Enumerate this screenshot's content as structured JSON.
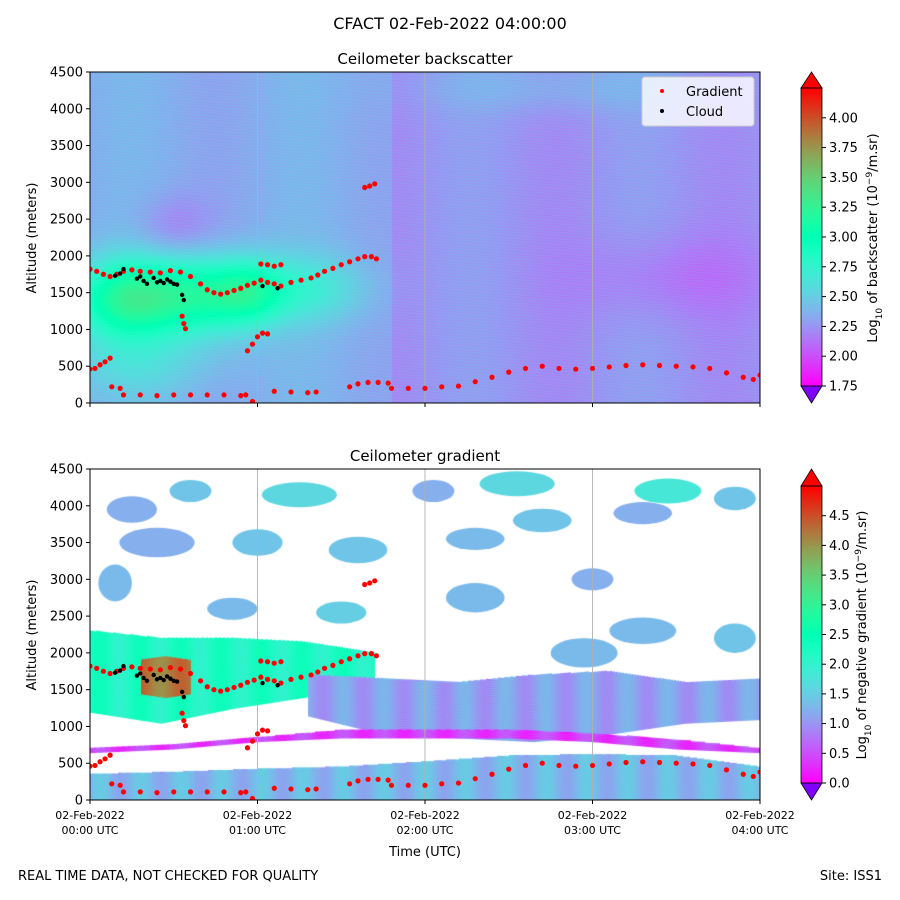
{
  "figure": {
    "suptitle": "CFACT 02-Feb-2022 04:00:00",
    "footer_left": "REAL TIME DATA, NOT CHECKED FOR QUALITY",
    "footer_right": "Site: ISS1"
  },
  "chart_data": [
    {
      "type": "heatmap",
      "title": "Ceilometer backscatter",
      "xlabel": "",
      "ylabel": "Altitude (meters)",
      "xlim_hours_utc": [
        0,
        4
      ],
      "ylim": [
        0,
        4500
      ],
      "yticks": [
        0,
        500,
        1000,
        1500,
        2000,
        2500,
        3000,
        3500,
        4000,
        4500
      ],
      "grid": "vertical lines at each hour",
      "colorbar": {
        "label_prefix": "Log",
        "label_sub": "10",
        "label_mid": " of backscatter (10",
        "label_sup": "−9",
        "label_suffix": "/m.sr)",
        "range": [
          1.75,
          4.25
        ],
        "ticks": [
          "1.75",
          "2.00",
          "2.25",
          "2.50",
          "2.75",
          "3.00",
          "3.25",
          "3.50",
          "3.75",
          "4.00"
        ],
        "tick_values": [
          1.75,
          2.0,
          2.25,
          2.5,
          2.75,
          3.0,
          3.25,
          3.5,
          3.75,
          4.0
        ],
        "colormap": "rainbow",
        "extend": "both"
      },
      "legend": {
        "placement": "top-right",
        "entries": [
          {
            "label": "Gradient",
            "color": "#ff0000"
          },
          {
            "label": "Cloud",
            "color": "#000000"
          }
        ]
      },
      "background_level": 2.35,
      "field_blobs": [
        {
          "t": 0.2,
          "z": 1400,
          "st": 0.22,
          "sz": 380,
          "amp": 0.75
        },
        {
          "t": 0.65,
          "z": 1450,
          "st": 0.25,
          "sz": 380,
          "amp": 0.7
        },
        {
          "t": 0.95,
          "z": 1500,
          "st": 0.15,
          "sz": 300,
          "amp": 0.45
        },
        {
          "t": 1.3,
          "z": 1550,
          "st": 0.25,
          "sz": 320,
          "amp": 0.3
        },
        {
          "t": 0.3,
          "z": 500,
          "st": 0.35,
          "sz": 320,
          "amp": 0.18
        },
        {
          "t": 0.5,
          "z": 2400,
          "st": 0.15,
          "sz": 300,
          "amp": -0.15
        },
        {
          "t": 2.8,
          "z": 4300,
          "st": 0.6,
          "sz": 250,
          "amp": 0.12
        },
        {
          "t": 3.5,
          "z": 1700,
          "st": 0.4,
          "sz": 400,
          "amp": -0.12
        }
      ],
      "gradient_points": [
        [
          0.0,
          1820
        ],
        [
          0.04,
          1790
        ],
        [
          0.08,
          1750
        ],
        [
          0.12,
          1720
        ],
        [
          0.16,
          1750
        ],
        [
          0.2,
          1790
        ],
        [
          0.25,
          1810
        ],
        [
          0.3,
          1790
        ],
        [
          0.36,
          1780
        ],
        [
          0.42,
          1770
        ],
        [
          0.48,
          1800
        ],
        [
          0.54,
          1780
        ],
        [
          0.6,
          1720
        ],
        [
          0.66,
          1620
        ],
        [
          0.7,
          1540
        ],
        [
          0.74,
          1500
        ],
        [
          0.78,
          1480
        ],
        [
          0.82,
          1500
        ],
        [
          0.86,
          1530
        ],
        [
          0.9,
          1560
        ],
        [
          0.94,
          1600
        ],
        [
          0.98,
          1630
        ],
        [
          1.02,
          1670
        ],
        [
          1.06,
          1640
        ],
        [
          1.1,
          1620
        ],
        [
          1.14,
          1590
        ],
        [
          1.2,
          1640
        ],
        [
          1.26,
          1670
        ],
        [
          1.32,
          1700
        ],
        [
          1.36,
          1740
        ],
        [
          1.4,
          1790
        ],
        [
          1.45,
          1830
        ],
        [
          1.5,
          1880
        ],
        [
          1.55,
          1920
        ],
        [
          1.6,
          1960
        ],
        [
          1.64,
          1990
        ],
        [
          1.68,
          1990
        ],
        [
          1.71,
          1960
        ],
        [
          1.02,
          1890
        ],
        [
          1.06,
          1880
        ],
        [
          1.1,
          1860
        ],
        [
          1.14,
          1880
        ],
        [
          0.94,
          710
        ],
        [
          0.97,
          800
        ],
        [
          1.0,
          900
        ],
        [
          1.03,
          950
        ],
        [
          1.06,
          940
        ],
        [
          1.64,
          2930
        ],
        [
          1.67,
          2950
        ],
        [
          1.7,
          2980
        ],
        [
          0.0,
          460
        ],
        [
          0.03,
          470
        ],
        [
          0.06,
          520
        ],
        [
          0.09,
          560
        ],
        [
          0.12,
          610
        ],
        [
          0.13,
          220
        ],
        [
          0.18,
          200
        ],
        [
          0.2,
          110
        ],
        [
          0.3,
          110
        ],
        [
          0.4,
          100
        ],
        [
          0.5,
          110
        ],
        [
          0.6,
          110
        ],
        [
          0.7,
          110
        ],
        [
          0.8,
          110
        ],
        [
          0.9,
          100
        ],
        [
          0.93,
          110
        ],
        [
          0.97,
          20
        ],
        [
          1.1,
          160
        ],
        [
          1.2,
          150
        ],
        [
          1.3,
          140
        ],
        [
          1.35,
          150
        ],
        [
          1.55,
          220
        ],
        [
          1.6,
          260
        ],
        [
          1.66,
          280
        ],
        [
          1.72,
          280
        ],
        [
          1.78,
          270
        ],
        [
          1.8,
          200
        ],
        [
          1.9,
          200
        ],
        [
          2.0,
          200
        ],
        [
          2.1,
          220
        ],
        [
          2.2,
          230
        ],
        [
          2.3,
          290
        ],
        [
          2.4,
          350
        ],
        [
          2.5,
          420
        ],
        [
          2.6,
          470
        ],
        [
          2.7,
          500
        ],
        [
          2.8,
          470
        ],
        [
          2.9,
          460
        ],
        [
          3.0,
          470
        ],
        [
          3.1,
          490
        ],
        [
          3.2,
          510
        ],
        [
          3.3,
          520
        ],
        [
          3.4,
          510
        ],
        [
          3.5,
          500
        ],
        [
          3.6,
          490
        ],
        [
          3.7,
          470
        ],
        [
          3.8,
          410
        ],
        [
          3.9,
          350
        ],
        [
          3.96,
          320
        ],
        [
          4.0,
          380
        ],
        [
          0.55,
          1180
        ],
        [
          0.56,
          1080
        ],
        [
          0.57,
          1010
        ]
      ],
      "cloud_points": [
        [
          0.15,
          1730
        ],
        [
          0.18,
          1760
        ],
        [
          0.2,
          1820
        ],
        [
          0.28,
          1690
        ],
        [
          0.3,
          1720
        ],
        [
          0.32,
          1660
        ],
        [
          0.34,
          1620
        ],
        [
          0.38,
          1700
        ],
        [
          0.4,
          1640
        ],
        [
          0.42,
          1660
        ],
        [
          0.44,
          1630
        ],
        [
          0.46,
          1680
        ],
        [
          0.48,
          1650
        ],
        [
          0.5,
          1620
        ],
        [
          0.52,
          1610
        ],
        [
          0.55,
          1470
        ],
        [
          0.56,
          1400
        ],
        [
          1.03,
          1590
        ],
        [
          1.12,
          1560
        ]
      ]
    },
    {
      "type": "heatmap",
      "title": "Ceilometer gradient",
      "xlabel": "Time (UTC)",
      "ylabel": "Altitude (meters)",
      "xlim_hours_utc": [
        0,
        4
      ],
      "ylim": [
        0,
        4500
      ],
      "yticks": [
        0,
        500,
        1000,
        1500,
        2000,
        2500,
        3000,
        3500,
        4000,
        4500
      ],
      "xticks": [
        {
          "value": 0,
          "line1": "02-Feb-2022",
          "line2": "00:00 UTC"
        },
        {
          "value": 1,
          "line1": "02-Feb-2022",
          "line2": "01:00 UTC"
        },
        {
          "value": 2,
          "line1": "02-Feb-2022",
          "line2": "02:00 UTC"
        },
        {
          "value": 3,
          "line1": "02-Feb-2022",
          "line2": "03:00 UTC"
        },
        {
          "value": 4,
          "line1": "02-Feb-2022",
          "line2": "04:00 UTC"
        }
      ],
      "grid": "vertical lines at each hour",
      "colorbar": {
        "label_prefix": "Log",
        "label_sub": "10",
        "label_mid": " of negative gradient (10",
        "label_sup": "−9",
        "label_suffix": "/m.sr)",
        "range": [
          0.0,
          5.0
        ],
        "ticks": [
          "0.0",
          "0.5",
          "1.0",
          "1.5",
          "2.0",
          "2.5",
          "3.0",
          "3.5",
          "4.0",
          "4.5"
        ],
        "tick_values": [
          0.0,
          0.5,
          1.0,
          1.5,
          2.0,
          2.5,
          3.0,
          3.5,
          4.0,
          4.5
        ],
        "colormap": "rainbow",
        "extend": "both"
      },
      "bands": [
        {
          "t0": 0.0,
          "t1": 1.7,
          "zlo": [
            1200,
            1050,
            1250,
            1400,
            1550
          ],
          "zhi": [
            2300,
            2200,
            2200,
            2150,
            2000
          ],
          "value": 2.2
        },
        {
          "t0": 0.3,
          "t1": 0.6,
          "zlo": [
            1450,
            1400,
            1450
          ],
          "zhi": [
            1900,
            1950,
            1900
          ],
          "value": 4.2
        },
        {
          "t0": 1.3,
          "t1": 4.0,
          "zlo": [
            1150,
            900,
            850,
            800,
            900,
            1050,
            1100
          ],
          "zhi": [
            1700,
            1650,
            1600,
            1700,
            1750,
            1600,
            1650
          ],
          "value": 1.1
        },
        {
          "t0": 0.0,
          "t1": 4.0,
          "zlo": [
            0,
            0,
            0,
            0,
            0,
            0,
            0,
            0,
            0
          ],
          "zhi": [
            350,
            380,
            420,
            450,
            520,
            600,
            620,
            600,
            450
          ],
          "value": 1.3
        },
        {
          "t0": 0.0,
          "t1": 4.0,
          "zlo": [
            650,
            700,
            800,
            850,
            850,
            850,
            800,
            700,
            650
          ],
          "zhi": [
            700,
            760,
            850,
            950,
            950,
            950,
            900,
            820,
            700
          ],
          "value": 0.4
        }
      ],
      "patches": [
        {
          "t": 0.25,
          "z": 3950,
          "w": 0.3,
          "h": 180,
          "v": 1.2
        },
        {
          "t": 0.6,
          "z": 4200,
          "w": 0.25,
          "h": 150,
          "v": 1.4
        },
        {
          "t": 1.25,
          "z": 4150,
          "w": 0.45,
          "h": 170,
          "v": 1.6
        },
        {
          "t": 2.05,
          "z": 4200,
          "w": 0.25,
          "h": 150,
          "v": 1.2
        },
        {
          "t": 2.55,
          "z": 4300,
          "w": 0.45,
          "h": 170,
          "v": 1.6
        },
        {
          "t": 3.45,
          "z": 4200,
          "w": 0.4,
          "h": 170,
          "v": 1.8
        },
        {
          "t": 3.85,
          "z": 4100,
          "w": 0.25,
          "h": 160,
          "v": 1.4
        },
        {
          "t": 0.4,
          "z": 3500,
          "w": 0.45,
          "h": 200,
          "v": 1.2
        },
        {
          "t": 1.0,
          "z": 3500,
          "w": 0.3,
          "h": 180,
          "v": 1.4
        },
        {
          "t": 1.6,
          "z": 3400,
          "w": 0.35,
          "h": 180,
          "v": 1.4
        },
        {
          "t": 2.3,
          "z": 3550,
          "w": 0.35,
          "h": 150,
          "v": 1.3
        },
        {
          "t": 2.7,
          "z": 3800,
          "w": 0.35,
          "h": 160,
          "v": 1.4
        },
        {
          "t": 3.3,
          "z": 3900,
          "w": 0.35,
          "h": 150,
          "v": 1.2
        },
        {
          "t": 0.15,
          "z": 2950,
          "w": 0.2,
          "h": 250,
          "v": 1.3
        },
        {
          "t": 0.85,
          "z": 2600,
          "w": 0.3,
          "h": 150,
          "v": 1.3
        },
        {
          "t": 1.5,
          "z": 2550,
          "w": 0.3,
          "h": 150,
          "v": 1.5
        },
        {
          "t": 2.3,
          "z": 2750,
          "w": 0.35,
          "h": 200,
          "v": 1.3
        },
        {
          "t": 3.0,
          "z": 3000,
          "w": 0.25,
          "h": 150,
          "v": 1.2
        },
        {
          "t": 3.3,
          "z": 2300,
          "w": 0.4,
          "h": 180,
          "v": 1.3
        },
        {
          "t": 2.95,
          "z": 2000,
          "w": 0.4,
          "h": 200,
          "v": 1.3
        },
        {
          "t": 3.85,
          "z": 2200,
          "w": 0.25,
          "h": 200,
          "v": 1.4
        }
      ]
    }
  ]
}
